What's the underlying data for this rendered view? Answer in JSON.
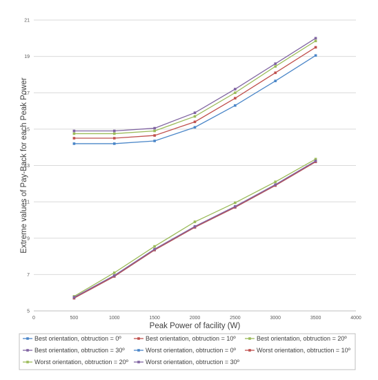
{
  "chart_data": {
    "type": "line",
    "xlabel": "Peak Power of facility (W)",
    "ylabel": "Extreme values of Pay-Back for each Peak Power",
    "xlim": [
      0,
      4000
    ],
    "ylim": [
      5,
      21
    ],
    "x_ticks": [
      0,
      500,
      1000,
      1500,
      2000,
      2500,
      3000,
      3500,
      4000
    ],
    "y_ticks": [
      5,
      7,
      9,
      11,
      13,
      15,
      17,
      19,
      21
    ],
    "grid": "horizontal",
    "legend_position": "bottom",
    "x": [
      500,
      1000,
      1500,
      2000,
      2500,
      3000,
      3500
    ],
    "series": [
      {
        "name": "Best orientation, obtruction = 0º",
        "color": "#4a86c8",
        "values": [
          5.7,
          6.9,
          8.35,
          9.6,
          10.7,
          11.9,
          13.2
        ]
      },
      {
        "name": "Best orientation, obtruction = 10º",
        "color": "#c0504d",
        "values": [
          5.7,
          6.9,
          8.35,
          9.6,
          10.7,
          11.9,
          13.2
        ]
      },
      {
        "name": "Best orientation, obtruction = 20º",
        "color": "#9bbb59",
        "values": [
          5.8,
          7.1,
          8.55,
          9.9,
          10.95,
          12.1,
          13.35
        ]
      },
      {
        "name": "Best orientation, obtruction = 30º",
        "color": "#8064a2",
        "values": [
          5.75,
          6.95,
          8.4,
          9.65,
          10.75,
          11.95,
          13.25
        ]
      },
      {
        "name": "Worst orientation, obtruction = 0º",
        "color": "#4a86c8",
        "values": [
          14.2,
          14.2,
          14.35,
          15.1,
          16.3,
          17.65,
          19.05
        ]
      },
      {
        "name": "Worst orientation, obtruction = 10º",
        "color": "#c0504d",
        "values": [
          14.5,
          14.5,
          14.65,
          15.4,
          16.7,
          18.1,
          19.5
        ]
      },
      {
        "name": "Worst orientation, obtruction = 20º",
        "color": "#9bbb59",
        "values": [
          14.75,
          14.75,
          14.9,
          15.7,
          17.0,
          18.45,
          19.85
        ]
      },
      {
        "name": "Worst orientation, obtruction = 30º",
        "color": "#8064a2",
        "values": [
          14.9,
          14.9,
          15.05,
          15.9,
          17.2,
          18.6,
          20.0
        ]
      }
    ]
  }
}
